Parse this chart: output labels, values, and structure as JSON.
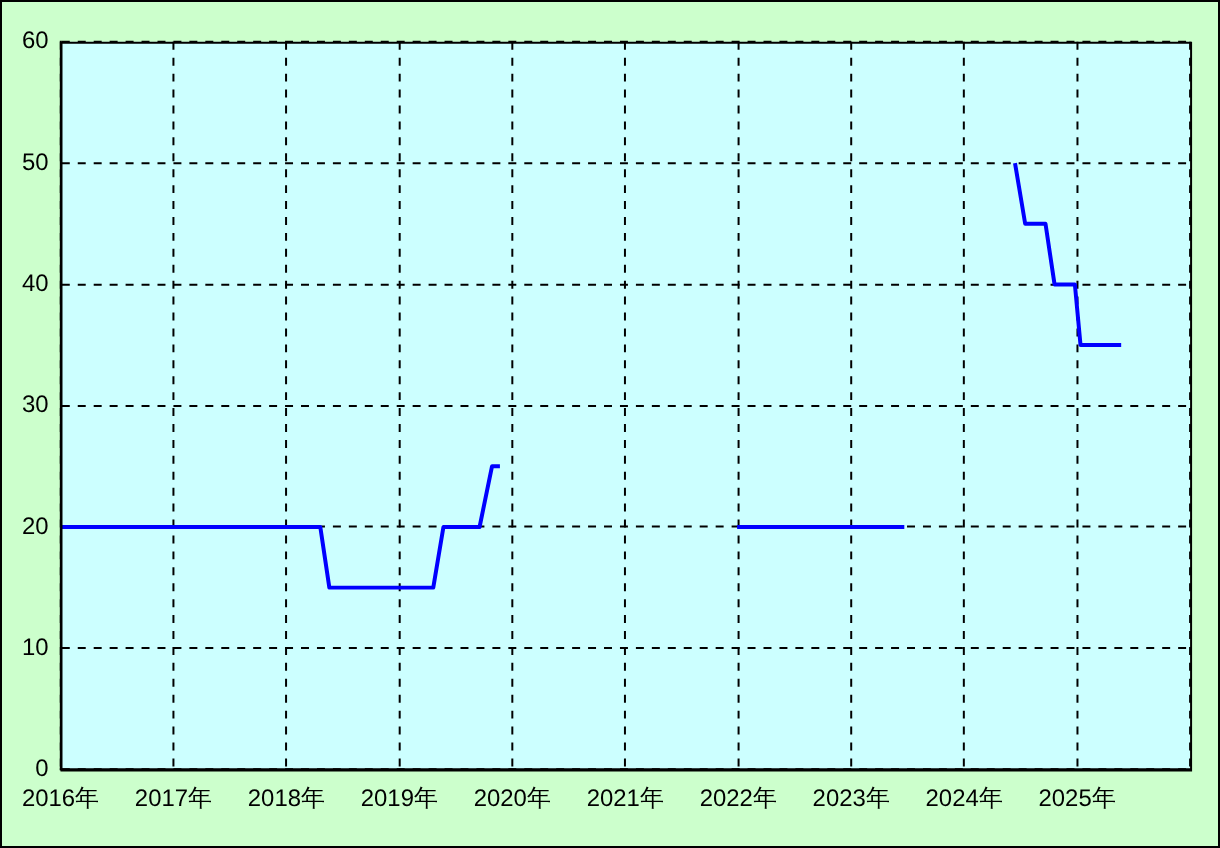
{
  "chart_data": {
    "type": "line",
    "x": [
      2016,
      2018.3,
      2018.38,
      2019.3,
      2019.39,
      2019.71,
      2019.82,
      2019.89,
      2020.5,
      2021.99,
      2023.47,
      2024.0,
      2024.45,
      2024.54,
      2024.72,
      2024.8,
      2024.98,
      2025.03,
      2025.39
    ],
    "series": [
      {
        "color": "#0000ff",
        "values": [
          20,
          20,
          15,
          15,
          20,
          20,
          25,
          25,
          null,
          20,
          20,
          null,
          50,
          45,
          45,
          40,
          40,
          35,
          35
        ]
      }
    ],
    "xlim": [
      2016,
      2026
    ],
    "xticks": [
      {
        "value": 2016,
        "label": "2016年"
      },
      {
        "value": 2017,
        "label": "2017年"
      },
      {
        "value": 2018,
        "label": "2018年"
      },
      {
        "value": 2019,
        "label": "2019年"
      },
      {
        "value": 2020,
        "label": "2020年"
      },
      {
        "value": 2021,
        "label": "2021年"
      },
      {
        "value": 2022,
        "label": "2022年"
      },
      {
        "value": 2023,
        "label": "2023年"
      },
      {
        "value": 2024,
        "label": "2024年"
      },
      {
        "value": 2025,
        "label": "2025年"
      },
      {
        "value": 2026,
        "label": null
      }
    ],
    "ylim": [
      0,
      60
    ],
    "yticks": [
      0,
      10,
      20,
      30,
      40,
      50,
      60
    ],
    "grid": true,
    "legend": false,
    "marker": "none",
    "line_style": "solid"
  }
}
